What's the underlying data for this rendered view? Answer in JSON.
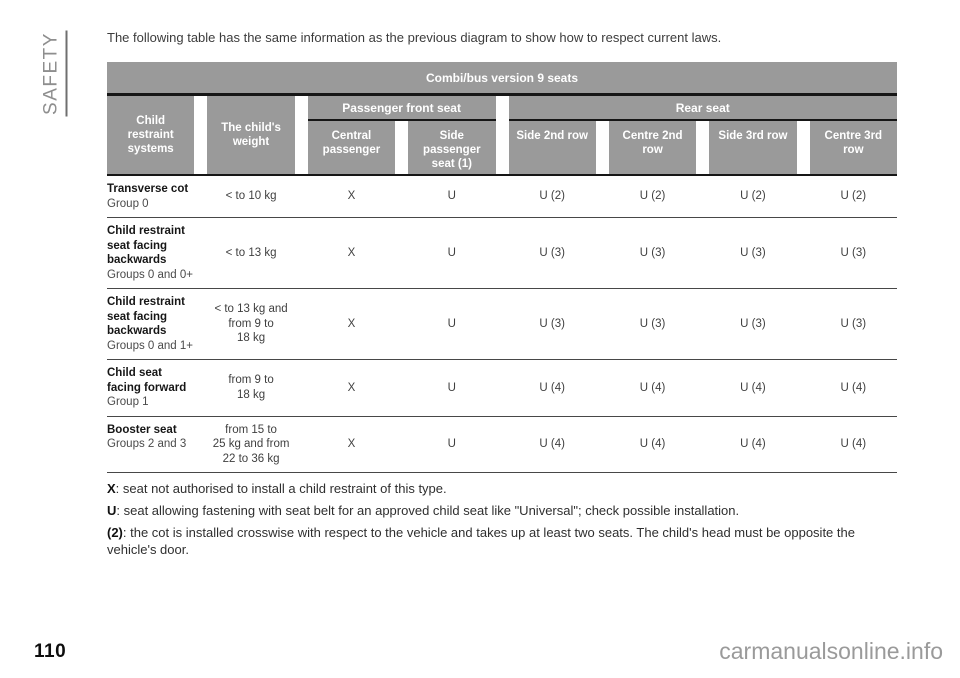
{
  "page": {
    "section_label": "SAFETY",
    "number": "110",
    "watermark": "carmanualsonline.info"
  },
  "intro": "The following table has the same information as the previous diagram to show how to respect current laws.",
  "colors": {
    "header_gray": "#9a9a9a",
    "header_text": "#ffffff",
    "line_black": "#161616",
    "body_text": "#3f3f3f",
    "muted_gray": "#8e8e8e"
  },
  "table": {
    "title": "Combi/bus version 9 seats",
    "headers": {
      "col_systems": "Child\nrestraint\nsystems",
      "col_weight": "The child's\nweight",
      "group_front": "Passenger front seat",
      "group_rear": "Rear seat",
      "col_central": "Central\npassenger",
      "col_side_front": "Side\npassenger\nseat (1)",
      "col_side_2nd": "Side 2nd row",
      "col_centre_2nd": "Centre 2nd\nrow",
      "col_side_3rd": "Side 3rd row",
      "col_centre_3rd": "Centre 3rd\nrow"
    },
    "rows": [
      {
        "name": "Transverse cot",
        "group": "Group 0",
        "weight": "< to 10 kg",
        "cells": [
          "X",
          "U",
          "U (2)",
          "U (2)",
          "U (2)",
          "U (2)"
        ]
      },
      {
        "name": "Child restraint seat facing backwards",
        "group": "Groups 0 and 0+",
        "weight": "< to 13 kg",
        "cells": [
          "X",
          "U",
          "U (3)",
          "U (3)",
          "U (3)",
          "U (3)"
        ]
      },
      {
        "name": "Child restraint seat facing backwards",
        "group": "Groups 0 and 1+",
        "weight": "< to 13 kg and\nfrom 9 to\n18 kg",
        "cells": [
          "X",
          "U",
          "U (3)",
          "U (3)",
          "U (3)",
          "U (3)"
        ]
      },
      {
        "name": "Child seat facing forward",
        "group": "Group 1",
        "weight": "from 9 to\n18 kg",
        "cells": [
          "X",
          "U",
          "U (4)",
          "U (4)",
          "U (4)",
          "U (4)"
        ]
      },
      {
        "name": "Booster seat",
        "group": "Groups 2 and 3",
        "weight": "from 15 to\n25 kg and from\n22 to 36 kg",
        "cells": [
          "X",
          "U",
          "U (4)",
          "U (4)",
          "U (4)",
          "U (4)"
        ]
      }
    ],
    "notes": [
      {
        "prefix": "X",
        "text": ": seat not authorised to install a child restraint of this type."
      },
      {
        "prefix": "U",
        "text": ": seat allowing fastening with seat belt for an approved child seat like \"Universal\"; check possible installation."
      },
      {
        "prefix": "(2)",
        "text": ": the cot is installed crosswise with respect to the vehicle and takes up at least two seats. The child's head must be opposite the vehicle's door."
      }
    ]
  }
}
